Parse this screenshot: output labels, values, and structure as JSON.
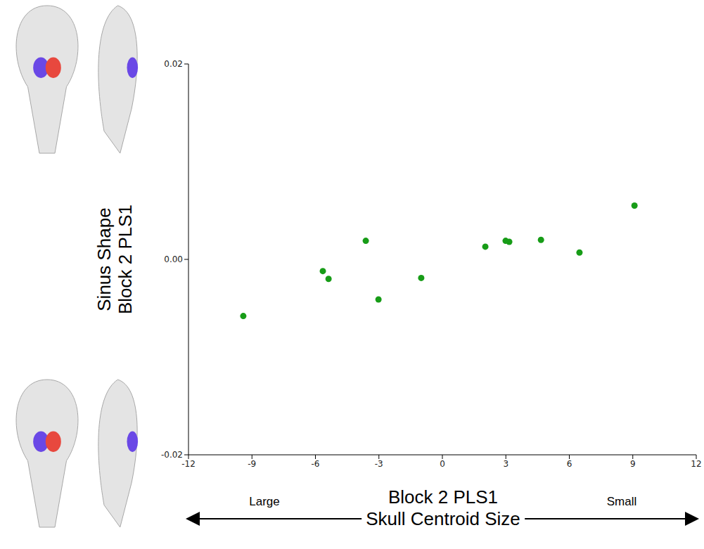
{
  "chart_data": {
    "type": "scatter",
    "y_label": [
      "Sinus Shape",
      "Block 2 PLS1"
    ],
    "x_label": [
      "Block 2 PLS1",
      "Skull Centroid Size"
    ],
    "annotations": [
      "Large",
      "Small"
    ],
    "x": [
      -9.41,
      -5.65,
      -5.38,
      -3.62,
      -3.02,
      -1.0,
      2.03,
      2.99,
      3.16,
      4.66,
      6.48,
      9.08
    ],
    "values": [
      -0.0058,
      -0.0012,
      -0.002,
      0.0019,
      -0.0041,
      -0.0019,
      0.0013,
      0.0019,
      0.0018,
      0.002,
      0.0007,
      0.0055
    ],
    "color": "#179c17",
    "marker": "circle",
    "grid": false,
    "xlim": [
      -12,
      12
    ],
    "ylim": [
      -0.02,
      0.02
    ],
    "xticks": [
      -12,
      -9,
      -6,
      -3,
      0,
      3,
      6,
      9,
      12
    ],
    "yticks": [
      {
        "value": -0.02,
        "label": "-0.02"
      },
      {
        "value": 0,
        "label": "0.00"
      },
      {
        "value": 0.02,
        "label": "0.02"
      }
    ]
  }
}
